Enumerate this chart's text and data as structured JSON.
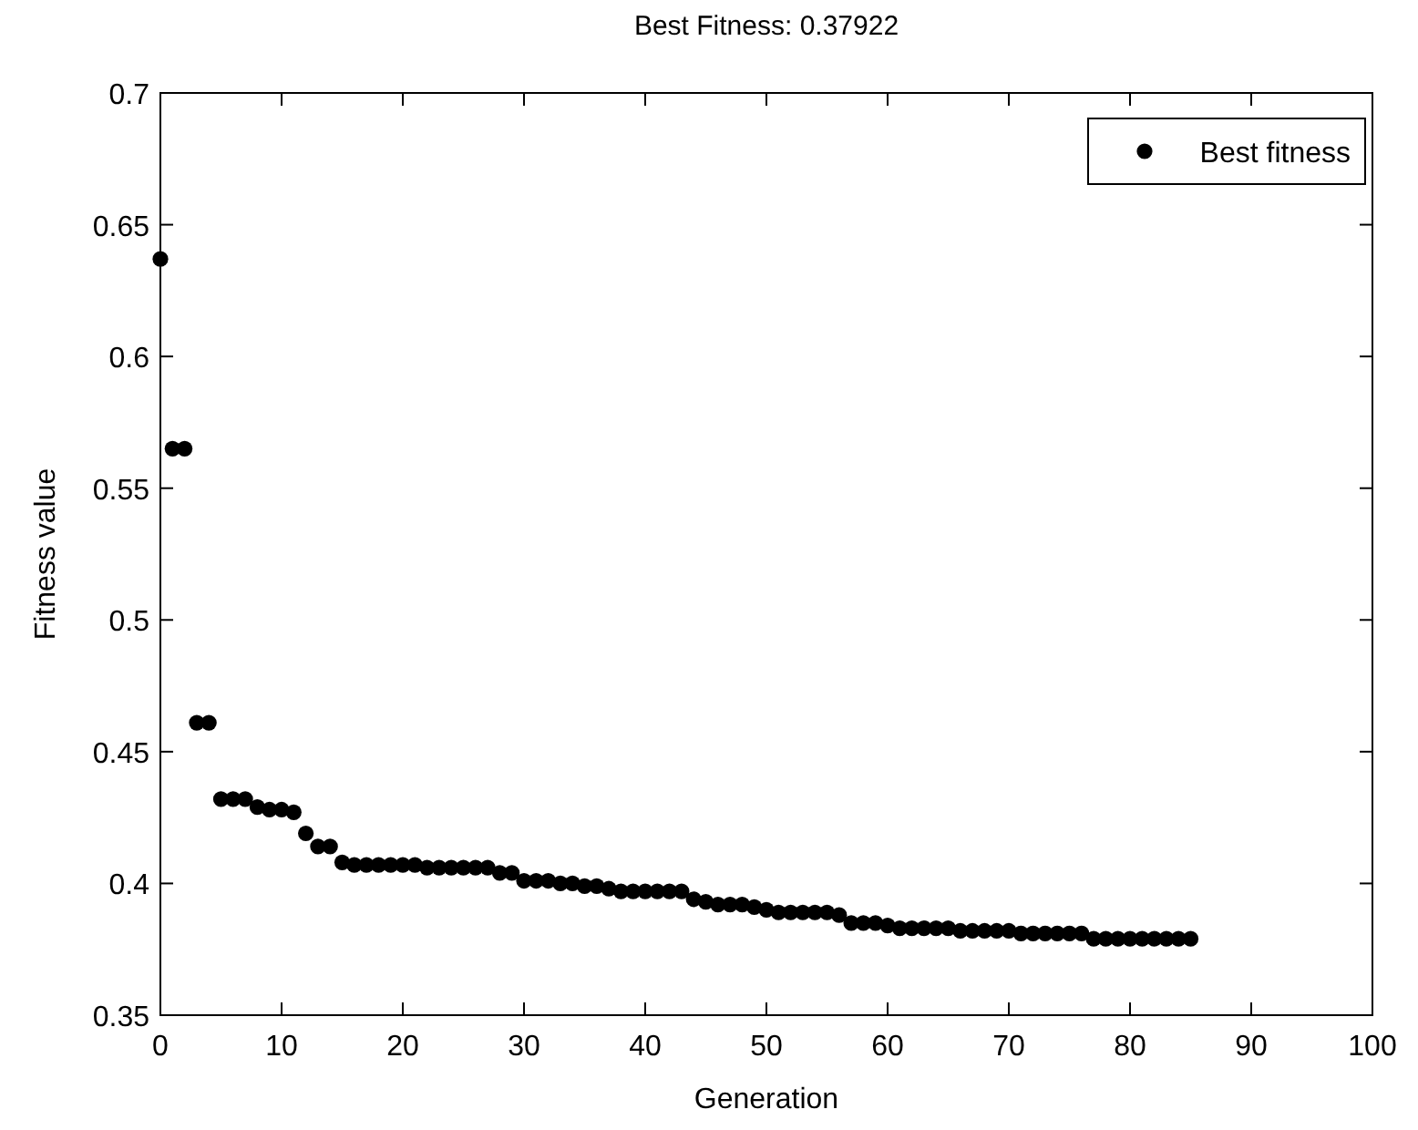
{
  "chart_data": {
    "type": "scatter",
    "title": "Best Fitness: 0.37922",
    "xlabel": "Generation",
    "ylabel": "Fitness value",
    "x": [
      0,
      1,
      2,
      3,
      4,
      5,
      6,
      7,
      8,
      9,
      10,
      11,
      12,
      13,
      14,
      15,
      16,
      17,
      18,
      19,
      20,
      21,
      22,
      23,
      24,
      25,
      26,
      27,
      28,
      29,
      30,
      31,
      32,
      33,
      34,
      35,
      36,
      37,
      38,
      39,
      40,
      41,
      42,
      43,
      44,
      45,
      46,
      47,
      48,
      49,
      50,
      51,
      52,
      53,
      54,
      55,
      56,
      57,
      58,
      59,
      60,
      61,
      62,
      63,
      64,
      65,
      66,
      67,
      68,
      69,
      70,
      71,
      72,
      73,
      74,
      75,
      76,
      77,
      78,
      79,
      80,
      81,
      82,
      83,
      84,
      85
    ],
    "series": [
      {
        "name": "Best fitness",
        "color": "#000000",
        "values": [
          0.637,
          0.565,
          0.565,
          0.461,
          0.461,
          0.432,
          0.432,
          0.432,
          0.429,
          0.428,
          0.428,
          0.427,
          0.419,
          0.414,
          0.414,
          0.408,
          0.407,
          0.407,
          0.407,
          0.407,
          0.407,
          0.407,
          0.406,
          0.406,
          0.406,
          0.406,
          0.406,
          0.406,
          0.404,
          0.404,
          0.401,
          0.401,
          0.401,
          0.4,
          0.4,
          0.399,
          0.399,
          0.398,
          0.397,
          0.397,
          0.397,
          0.397,
          0.397,
          0.397,
          0.394,
          0.393,
          0.392,
          0.392,
          0.392,
          0.391,
          0.39,
          0.389,
          0.389,
          0.389,
          0.389,
          0.389,
          0.388,
          0.385,
          0.385,
          0.385,
          0.384,
          0.383,
          0.383,
          0.383,
          0.383,
          0.383,
          0.382,
          0.382,
          0.382,
          0.382,
          0.382,
          0.381,
          0.381,
          0.381,
          0.381,
          0.381,
          0.381,
          0.379,
          0.379,
          0.379,
          0.379,
          0.379,
          0.379,
          0.379,
          0.379,
          0.379
        ]
      }
    ],
    "xlim": [
      0,
      100
    ],
    "xticks": [
      0,
      10,
      20,
      30,
      40,
      50,
      60,
      70,
      80,
      90,
      100
    ],
    "ylim": [
      0.35,
      0.7
    ],
    "yticks": [
      0.35,
      0.4,
      0.45,
      0.5,
      0.55,
      0.6,
      0.65,
      0.7
    ],
    "marker": "circle",
    "legend": "top right",
    "grid": false
  }
}
